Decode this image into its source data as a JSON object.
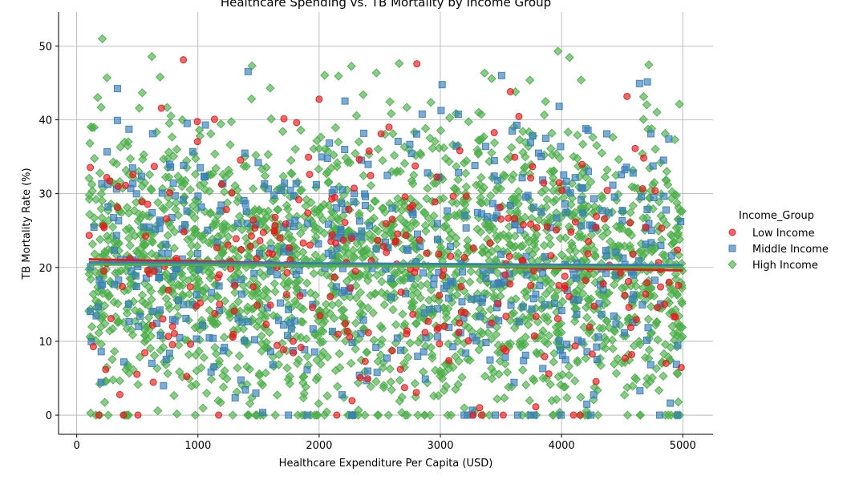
{
  "chart_data": {
    "type": "scatter",
    "title": "Healthcare Spending vs. TB Mortality by Income Group",
    "xlabel": "Healthcare Expenditure Per Capita (USD)",
    "ylabel": "TB Mortality Rate (%)",
    "xlim": [
      -150,
      5250
    ],
    "ylim": [
      -2.6,
      54.6
    ],
    "xticks": [
      0,
      1000,
      2000,
      3000,
      4000,
      5000
    ],
    "yticks": [
      0,
      10,
      20,
      30,
      40,
      50
    ],
    "grid": true,
    "legend": {
      "title": "Income_Group",
      "placement": "right-outside"
    },
    "series": [
      {
        "name": "Low Income",
        "marker": "circle",
        "color": "#e41a1c",
        "point_count": 300,
        "x_range": [
          100,
          5000
        ],
        "y_range": [
          0,
          50
        ],
        "trend": {
          "x": [
            100,
            5000
          ],
          "y": [
            21.1,
            19.6
          ]
        }
      },
      {
        "name": "Middle Income",
        "marker": "square",
        "color": "#377eb8",
        "point_count": 500,
        "x_range": [
          100,
          5000
        ],
        "y_range": [
          0,
          50
        ],
        "trend": {
          "x": [
            100,
            5000
          ],
          "y": [
            20.7,
            20.3
          ]
        }
      },
      {
        "name": "High Income",
        "marker": "diamond",
        "color": "#4daf4a",
        "point_count": 2200,
        "x_range": [
          100,
          5000
        ],
        "y_range": [
          0,
          52
        ],
        "trend": {
          "x": [
            100,
            5000
          ],
          "y": [
            20.4,
            20.0
          ]
        }
      }
    ]
  }
}
